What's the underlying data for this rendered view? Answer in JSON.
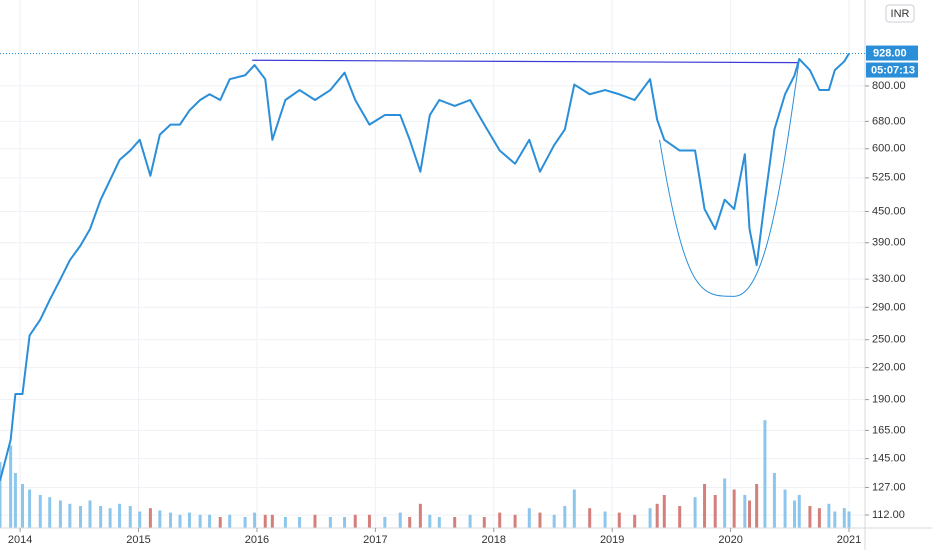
{
  "chart_data": {
    "type": "line",
    "log_scale": true,
    "grid": true,
    "color": "#2a8fd8",
    "currency_button": "INR",
    "countdown": "05:07:13",
    "last_price": {
      "value": 928,
      "label": "928.00"
    },
    "x": [
      2013.83,
      2013.92,
      2013.96,
      2014.02,
      2014.08,
      2014.17,
      2014.25,
      2014.34,
      2014.42,
      2014.51,
      2014.59,
      2014.68,
      2014.76,
      2014.84,
      2014.93,
      2015.01,
      2015.1,
      2015.18,
      2015.27,
      2015.35,
      2015.43,
      2015.52,
      2015.6,
      2015.69,
      2015.77,
      2015.9,
      2015.98,
      2016.07,
      2016.13,
      2016.24,
      2016.36,
      2016.49,
      2016.62,
      2016.74,
      2016.83,
      2016.95,
      2017.08,
      2017.21,
      2017.29,
      2017.38,
      2017.46,
      2017.54,
      2017.67,
      2017.8,
      2017.92,
      2018.05,
      2018.18,
      2018.3,
      2018.39,
      2018.51,
      2018.6,
      2018.68,
      2018.81,
      2018.94,
      2019.06,
      2019.19,
      2019.32,
      2019.38,
      2019.44,
      2019.57,
      2019.7,
      2019.78,
      2019.87,
      2019.95,
      2020.03,
      2020.12,
      2020.16,
      2020.22,
      2020.29,
      2020.37,
      2020.46,
      2020.54,
      2020.58,
      2020.67,
      2020.75,
      2020.83,
      2020.88,
      2020.96,
      2021.0
    ],
    "values": [
      131,
      158,
      195,
      195,
      255,
      274,
      300,
      330,
      360,
      385,
      415,
      475,
      520,
      570,
      595,
      625,
      530,
      640,
      670,
      670,
      715,
      750,
      770,
      750,
      825,
      840,
      880,
      825,
      625,
      750,
      785,
      750,
      785,
      850,
      750,
      670,
      700,
      700,
      625,
      540,
      700,
      750,
      730,
      750,
      670,
      595,
      560,
      625,
      540,
      610,
      655,
      805,
      770,
      785,
      770,
      750,
      825,
      685,
      625,
      595,
      595,
      455,
      415,
      475,
      455,
      585,
      415,
      352,
      475,
      655,
      770,
      840,
      905,
      860,
      785,
      785,
      860,
      895,
      928
    ],
    "volume": [
      60,
      75,
      50,
      40,
      35,
      30,
      28,
      25,
      22,
      20,
      25,
      20,
      18,
      22,
      20,
      15,
      18,
      16,
      14,
      12,
      14,
      12,
      12,
      10,
      12,
      10,
      14,
      12,
      12,
      10,
      10,
      12,
      10,
      10,
      12,
      12,
      10,
      14,
      10,
      22,
      12,
      10,
      10,
      12,
      10,
      14,
      12,
      18,
      14,
      12,
      20,
      35,
      18,
      15,
      14,
      12,
      18,
      22,
      30,
      20,
      28,
      40,
      30,
      45,
      35,
      30,
      25,
      40,
      98,
      50,
      35,
      25,
      30,
      20,
      18,
      22,
      15,
      18,
      15
    ],
    "volume_lim": [
      0,
      100
    ],
    "volume_colors": {
      "up": "#8cc6ec",
      "down": "#d47f7b"
    },
    "trendline": {
      "x": [
        2015.96,
        2020.58
      ],
      "y": [
        900,
        890
      ],
      "color": "#3b3bd6"
    },
    "cup": {
      "x": [
        2019.4,
        2020.03,
        2020.58
      ],
      "y": [
        625,
        305,
        905
      ],
      "color": "#2a8fd8"
    },
    "xlim": [
      2013.83,
      2021.135
    ],
    "xticks": [
      2014,
      2015,
      2016,
      2017,
      2018,
      2019,
      2020,
      2021
    ],
    "ylim": [
      105.5,
      1186
    ],
    "yticks": [
      {
        "value": 112,
        "label": "112.00"
      },
      {
        "value": 127,
        "label": "127.00"
      },
      {
        "value": 145,
        "label": "145.00"
      },
      {
        "value": 165,
        "label": "165.00"
      },
      {
        "value": 190,
        "label": "190.00"
      },
      {
        "value": 220,
        "label": "220.00"
      },
      {
        "value": 250,
        "label": "250.00"
      },
      {
        "value": 290,
        "label": "290.00"
      },
      {
        "value": 330,
        "label": "330.00"
      },
      {
        "value": 390,
        "label": "390.00"
      },
      {
        "value": 450,
        "label": "450.00"
      },
      {
        "value": 525,
        "label": "525.00"
      },
      {
        "value": 600,
        "label": "600.00"
      },
      {
        "value": 680,
        "label": "680.00"
      },
      {
        "value": 800,
        "label": "800.00"
      }
    ]
  }
}
